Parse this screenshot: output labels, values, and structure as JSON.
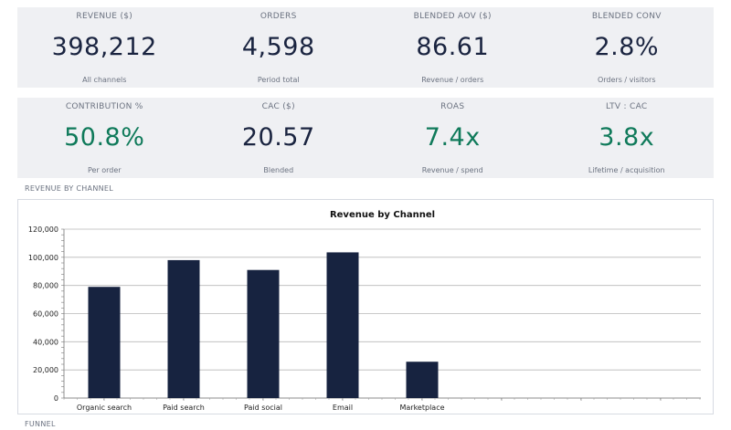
{
  "kpis_row1": [
    {
      "label": "REVENUE ($)",
      "value": "398,212",
      "sub": "All channels",
      "tone": "neutral"
    },
    {
      "label": "ORDERS",
      "value": "4,598",
      "sub": "Period total",
      "tone": "neutral"
    },
    {
      "label": "BLENDED AOV ($)",
      "value": "86.61",
      "sub": "Revenue / orders",
      "tone": "neutral"
    },
    {
      "label": "BLENDED CONV",
      "value": "2.8%",
      "sub": "Orders / visitors",
      "tone": "neutral"
    }
  ],
  "kpis_row2": [
    {
      "label": "CONTRIBUTION %",
      "value": "50.8%",
      "sub": "Per order",
      "tone": "good"
    },
    {
      "label": "CAC ($)",
      "value": "20.57",
      "sub": "Blended",
      "tone": "neutral"
    },
    {
      "label": "ROAS",
      "value": "7.4x",
      "sub": "Revenue / spend",
      "tone": "good"
    },
    {
      "label": "LTV : CAC",
      "value": "3.8x",
      "sub": "Lifetime / acquisition",
      "tone": "good"
    }
  ],
  "sections": {
    "revenue_by_channel": "REVENUE BY CHANNEL",
    "funnel": "FUNNEL"
  },
  "colors": {
    "bar": "#172340",
    "good": "#0f7a5a",
    "neutral": "#1a2440",
    "kpi_bg": "#eff0f3",
    "grid": "#b8b8b8"
  },
  "chart_data": {
    "type": "bar",
    "title": "Revenue by Channel",
    "categories": [
      "Organic search",
      "Paid search",
      "Paid social",
      "Email",
      "Marketplace",
      "",
      "",
      "",
      ""
    ],
    "values": [
      79000,
      98000,
      91000,
      103500,
      25800,
      0,
      0,
      0,
      0
    ],
    "ylim": [
      0,
      120000
    ],
    "yticks": [
      0,
      20000,
      40000,
      60000,
      80000,
      100000,
      120000
    ],
    "ytick_labels": [
      "0",
      "20,000",
      "40,000",
      "60,000",
      "80,000",
      "100,000",
      "120,000"
    ],
    "xlabel": "",
    "ylabel": "",
    "grid": true
  }
}
